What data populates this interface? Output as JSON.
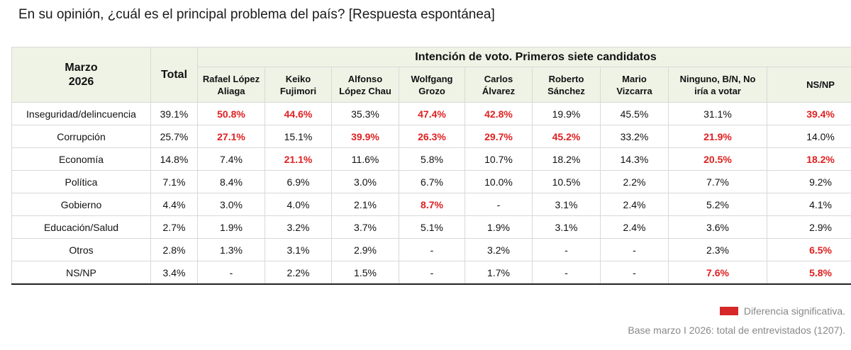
{
  "title": "En su opinión, ¿cuál es el principal problema del país? [Respuesta espontánea]",
  "chart_data": {
    "type": "table",
    "corner_header": [
      "Marzo",
      "2026"
    ],
    "total_header": "Total",
    "group_header": "Intención de voto. Primeros siete candidatos",
    "columns": [
      [
        "Rafael López",
        "Aliaga"
      ],
      [
        "Keiko",
        "Fujimori"
      ],
      [
        "Alfonso",
        "López Chau"
      ],
      [
        "Wolfgang",
        "Grozo"
      ],
      [
        "Carlos",
        "Álvarez"
      ],
      [
        "Roberto",
        "Sánchez"
      ],
      [
        "Mario",
        "Vizcarra"
      ],
      [
        "Ninguno, B/N, No",
        "iría a votar"
      ],
      [
        "NS/NP"
      ]
    ],
    "rows": [
      {
        "label": "Inseguridad/delincuencia",
        "total": "39.1%",
        "values": [
          "50.8%",
          "44.6%",
          "35.3%",
          "47.4%",
          "42.8%",
          "19.9%",
          "45.5%",
          "31.1%",
          "39.4%"
        ],
        "significant": [
          true,
          true,
          false,
          true,
          true,
          false,
          false,
          false,
          true
        ]
      },
      {
        "label": "Corrupción",
        "total": "25.7%",
        "values": [
          "27.1%",
          "15.1%",
          "39.9%",
          "26.3%",
          "29.7%",
          "45.2%",
          "33.2%",
          "21.9%",
          "14.0%"
        ],
        "significant": [
          true,
          false,
          true,
          true,
          true,
          true,
          false,
          true,
          false
        ]
      },
      {
        "label": "Economía",
        "total": "14.8%",
        "values": [
          "7.4%",
          "21.1%",
          "11.6%",
          "5.8%",
          "10.7%",
          "18.2%",
          "14.3%",
          "20.5%",
          "18.2%"
        ],
        "significant": [
          false,
          true,
          false,
          false,
          false,
          false,
          false,
          true,
          true
        ]
      },
      {
        "label": "Política",
        "total": "7.1%",
        "values": [
          "8.4%",
          "6.9%",
          "3.0%",
          "6.7%",
          "10.0%",
          "10.5%",
          "2.2%",
          "7.7%",
          "9.2%"
        ],
        "significant": [
          false,
          false,
          false,
          false,
          false,
          false,
          false,
          false,
          false
        ]
      },
      {
        "label": "Gobierno",
        "total": "4.4%",
        "values": [
          "3.0%",
          "4.0%",
          "2.1%",
          "8.7%",
          "-",
          "3.1%",
          "2.4%",
          "5.2%",
          "4.1%"
        ],
        "significant": [
          false,
          false,
          false,
          true,
          false,
          false,
          false,
          false,
          false
        ]
      },
      {
        "label": "Educación/Salud",
        "total": "2.7%",
        "values": [
          "1.9%",
          "3.2%",
          "3.7%",
          "5.1%",
          "1.9%",
          "3.1%",
          "2.4%",
          "3.6%",
          "2.9%"
        ],
        "significant": [
          false,
          false,
          false,
          false,
          false,
          false,
          false,
          false,
          false
        ]
      },
      {
        "label": "Otros",
        "total": "2.8%",
        "values": [
          "1.3%",
          "3.1%",
          "2.9%",
          "-",
          "3.2%",
          "-",
          "-",
          "2.3%",
          "6.5%"
        ],
        "significant": [
          false,
          false,
          false,
          false,
          false,
          false,
          false,
          false,
          true
        ]
      },
      {
        "label": "NS/NP",
        "total": "3.4%",
        "values": [
          "-",
          "2.2%",
          "1.5%",
          "-",
          "1.7%",
          "-",
          "-",
          "7.6%",
          "5.8%"
        ],
        "significant": [
          false,
          false,
          false,
          false,
          false,
          false,
          false,
          true,
          true
        ]
      }
    ],
    "significance_color": "#e02020"
  },
  "legend": {
    "label": "Diferencia significativa.",
    "swatch_color": "#d62828"
  },
  "footnote": "Base marzo I 2026: total de entrevistados (1207)."
}
